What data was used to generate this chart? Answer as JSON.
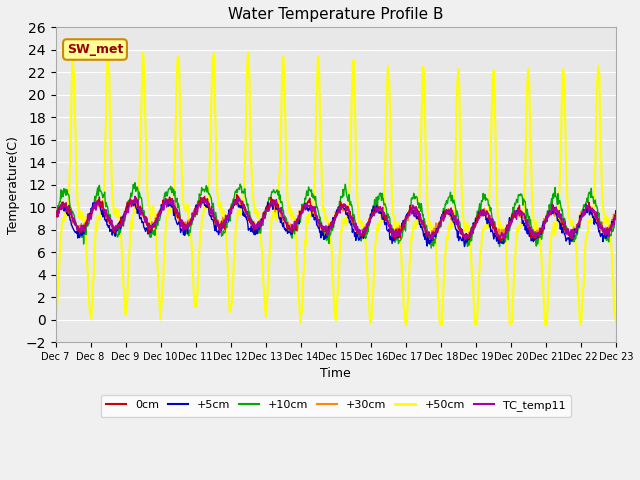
{
  "title": "Water Temperature Profile B",
  "xlabel": "Time",
  "ylabel": "Temperature(C)",
  "ylim": [
    -2,
    26
  ],
  "yticks": [
    -2,
    0,
    2,
    4,
    6,
    8,
    10,
    12,
    14,
    16,
    18,
    20,
    22,
    24,
    26
  ],
  "bg_color": "#f0f0f0",
  "plot_bg_color": "#e8e8e8",
  "annotation_text": "SW_met",
  "annotation_bg": "#ffff99",
  "annotation_border": "#cc8800",
  "annotation_text_color": "#990000",
  "series_colors": {
    "0cm": "#cc0000",
    "+5cm": "#0000cc",
    "+10cm": "#00aa00",
    "+30cm": "#ff8800",
    "+50cm": "#ffff00",
    "TC_temp11": "#aa00aa"
  },
  "series_linewidths": {
    "0cm": 1.0,
    "+5cm": 1.0,
    "+10cm": 1.0,
    "+30cm": 1.0,
    "+50cm": 1.5,
    "TC_temp11": 1.0
  },
  "n_points": 960,
  "days": 16,
  "start_day": 7
}
